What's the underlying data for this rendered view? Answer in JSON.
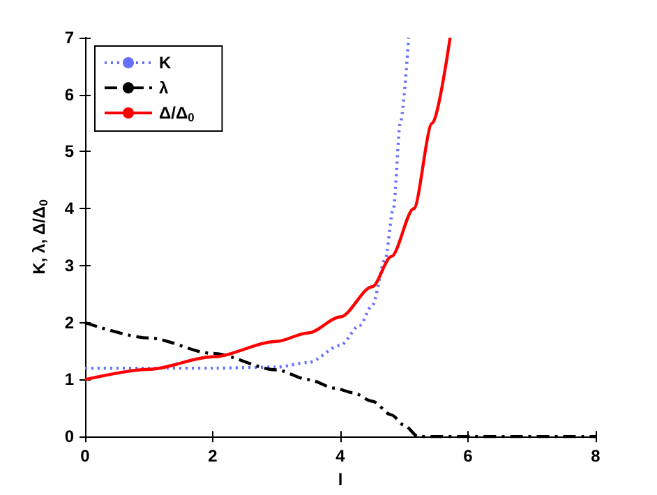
{
  "chart_data": {
    "type": "line",
    "xlabel": "l",
    "ylabel": "K, λ, Δ/Δ$_{0}$",
    "xlim": [
      0,
      8
    ],
    "ylim": [
      0,
      7
    ],
    "xticks": [
      0,
      2,
      4,
      6,
      8
    ],
    "yticks": [
      0,
      1,
      2,
      3,
      4,
      5,
      6,
      7
    ],
    "grid": false,
    "legend": "top left",
    "marker": "none",
    "series": [
      {
        "name": "K",
        "color": "#6670ff",
        "line_style": "dotted",
        "x": [
          0,
          1,
          2,
          3,
          3.5,
          4,
          4.3,
          4.5,
          4.7,
          4.83,
          4.94,
          5.07
        ],
        "values": [
          1.2,
          1.2,
          1.2,
          1.22,
          1.3,
          1.6,
          1.95,
          2.3,
          3.1,
          4,
          5.5,
          7
        ]
      },
      {
        "name": "λ",
        "color": "#000000",
        "line_style": "dashdot",
        "x": [
          0,
          1,
          2,
          3,
          3.5,
          3.91,
          4.2,
          4.5,
          4.8,
          5,
          5.22,
          8
        ],
        "values": [
          2,
          1.73,
          1.46,
          1.17,
          1.0,
          0.85,
          0.77,
          0.62,
          0.38,
          0.2,
          0,
          0
        ]
      },
      {
        "name": "Δ/Δ$_{0}$",
        "color": "#ff0000",
        "line_style": "solid",
        "x": [
          0,
          1,
          2,
          3,
          3.5,
          4,
          4.5,
          4.8,
          5.15,
          5.44,
          5.72
        ],
        "values": [
          1.0,
          1.18,
          1.4,
          1.67,
          1.82,
          2.1,
          2.63,
          3.16,
          4,
          5.5,
          7
        ]
      }
    ]
  }
}
